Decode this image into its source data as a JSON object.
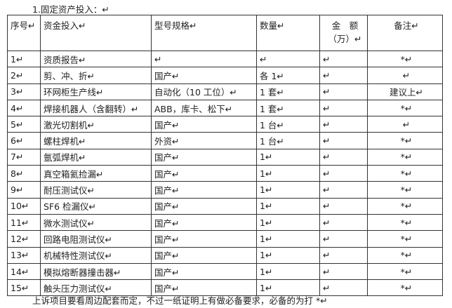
{
  "title": "1.固定资产投入：↵",
  "table": {
    "header": [
      "序号↵",
      "资金投入↵",
      "型号规格↵",
      "数量↵",
      [
        "金　额",
        "（万）↵"
      ],
      "备注↵"
    ],
    "rows": [
      [
        "1↵",
        "资质报告↵",
        "↵",
        "↵",
        "↵",
        "*↵"
      ],
      [
        "2↵",
        "剪、冲、折↵",
        "国产↵",
        "各 1↵",
        "↵",
        "↵"
      ],
      [
        "3↵",
        "环网柜生产线↵",
        "自动化（10 工位）↵",
        "1 套↵",
        "↵",
        "建议上↵"
      ],
      [
        "4↵",
        "焊接机器人（含翻转）↵",
        "ABB，库卡、松下↵",
        "1 套↵",
        "↵",
        "*↵"
      ],
      [
        "5↵",
        "激光切割机↵",
        "国产↵",
        "1 台↵",
        "↵",
        "↵"
      ],
      [
        "6↵",
        "螺柱焊机↵",
        "外资↵",
        "1 台↵",
        "↵",
        "*↵"
      ],
      [
        "7↵",
        "氩弧焊机↵",
        "国产↵",
        "1↵",
        "↵",
        "*↵"
      ],
      [
        "8↵",
        "真空箱氦捡漏↵",
        "国产↵",
        "1↵",
        "↵",
        "*↵"
      ],
      [
        "9↵",
        "耐压测试仪↵",
        "国产↵",
        "1↵",
        "↵",
        "*↵"
      ],
      [
        "10↵",
        "SF6 检漏仪↵",
        "国产↵",
        "1↵",
        "↵",
        "*↵"
      ],
      [
        "11↵",
        "微水测试仪↵",
        "国产↵",
        "1↵",
        "↵",
        "*↵"
      ],
      [
        "12↵",
        "回路电阻测试仪↵",
        "国产↵",
        "1↵",
        "↵",
        "*↵"
      ],
      [
        "13↵",
        "机械特性测试仪↵",
        "国产↵",
        "1↵",
        "↵",
        "*↵"
      ],
      [
        "14↵",
        "模拟熔断器撞击器↵",
        "国产↵",
        "1↵",
        "↵",
        "*↵"
      ],
      [
        "15↵",
        "触头压力测试仪↵",
        "国产↵",
        "1↵",
        "↵",
        "*↵"
      ]
    ]
  },
  "footer": "上诉项目要看周边配套而定，不过一纸证明上有做必备要求，必备的为打 *↵"
}
